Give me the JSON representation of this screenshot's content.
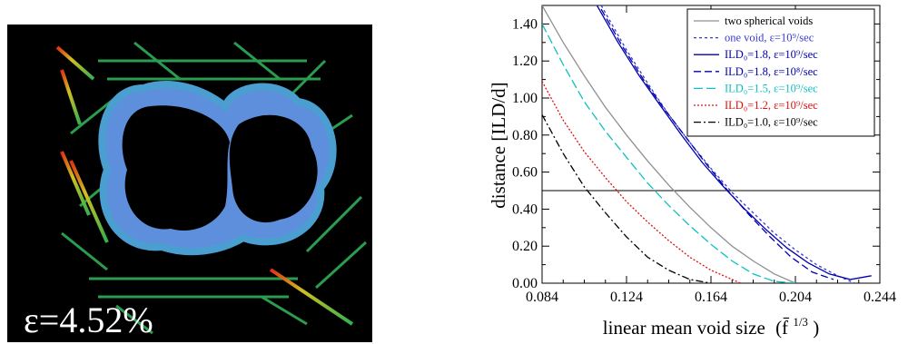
{
  "simulation": {
    "label": "ε=4.52%",
    "colors": {
      "background": "#000000",
      "void_ring": "#5e8fdc",
      "void_interior": "#000000"
    }
  },
  "chart_data": {
    "type": "line",
    "xlabel_main": "linear mean void size",
    "xlabel_paren": "(f̄",
    "xlabel_sup": "1/3",
    "xlabel_close": ")",
    "ylabel": "distance [ILD/d]",
    "xlim": [
      0.084,
      0.244
    ],
    "ylim": [
      0.0,
      1.5
    ],
    "xticks": [
      "0.084",
      "0.124",
      "0.164",
      "0.204",
      "0.244"
    ],
    "yticks": [
      "0.00",
      "0.20",
      "0.40",
      "0.60",
      "0.80",
      "1.00",
      "1.20",
      "1.40"
    ],
    "grid": false,
    "reference_line_y": 0.5,
    "legend_position": "top-right",
    "series": [
      {
        "name": "two spherical voids",
        "color": "#909090",
        "dash": "solid",
        "x": [
          0.084,
          0.094,
          0.104,
          0.114,
          0.124,
          0.134,
          0.144,
          0.154,
          0.164,
          0.174,
          0.184,
          0.194,
          0.204
        ],
        "y": [
          1.5,
          1.3,
          1.12,
          0.95,
          0.8,
          0.66,
          0.53,
          0.41,
          0.3,
          0.2,
          0.12,
          0.05,
          0.0
        ]
      },
      {
        "name": "one void, ε=10⁹/sec",
        "color": "#3a3ad0",
        "dash": "3,3",
        "x": [
          0.112,
          0.124,
          0.134,
          0.144,
          0.154,
          0.164,
          0.174,
          0.184,
          0.194,
          0.204,
          0.214,
          0.224,
          0.232
        ],
        "y": [
          1.5,
          1.26,
          1.08,
          0.91,
          0.76,
          0.62,
          0.49,
          0.38,
          0.27,
          0.18,
          0.1,
          0.04,
          0.0
        ]
      },
      {
        "name": "ILD₀=1.8, ε=10⁹/sec",
        "color": "#0000b0",
        "dash": "solid",
        "x": [
          0.11,
          0.12,
          0.13,
          0.14,
          0.15,
          0.16,
          0.17,
          0.18,
          0.19,
          0.2,
          0.21,
          0.22,
          0.23,
          0.24
        ],
        "y": [
          1.5,
          1.3,
          1.12,
          0.96,
          0.8,
          0.65,
          0.52,
          0.4,
          0.29,
          0.19,
          0.11,
          0.05,
          0.02,
          0.04
        ]
      },
      {
        "name": "ILD₀=1.8, ε=10⁸/sec",
        "color": "#0000b0",
        "dash": "8,4",
        "x": [
          0.112,
          0.122,
          0.132,
          0.142,
          0.152,
          0.162,
          0.172,
          0.182,
          0.192,
          0.202,
          0.212,
          0.222
        ],
        "y": [
          1.48,
          1.28,
          1.1,
          0.94,
          0.79,
          0.64,
          0.5,
          0.37,
          0.25,
          0.14,
          0.06,
          0.02
        ]
      },
      {
        "name": "ILD₀=1.5, ε=10⁹/sec",
        "color": "#10c0c0",
        "dash": "10,4",
        "x": [
          0.084,
          0.094,
          0.104,
          0.114,
          0.124,
          0.134,
          0.144,
          0.154,
          0.164,
          0.174,
          0.184,
          0.194,
          0.204
        ],
        "y": [
          1.4,
          1.18,
          0.98,
          0.82,
          0.68,
          0.54,
          0.42,
          0.31,
          0.21,
          0.12,
          0.05,
          0.01,
          0.0
        ]
      },
      {
        "name": "ILD₀=1.2, ε=10⁹/sec",
        "color": "#e01010",
        "dash": "2,2",
        "x": [
          0.084,
          0.094,
          0.104,
          0.114,
          0.124,
          0.134,
          0.144,
          0.154,
          0.164,
          0.174,
          0.178
        ],
        "y": [
          1.09,
          0.88,
          0.71,
          0.57,
          0.44,
          0.33,
          0.23,
          0.14,
          0.07,
          0.02,
          0.0
        ]
      },
      {
        "name": "ILD₀=1.0, ε=10⁹/sec",
        "color": "#000000",
        "dash": "8,3,2,3",
        "x": [
          0.084,
          0.094,
          0.104,
          0.114,
          0.124,
          0.134,
          0.144,
          0.154,
          0.164
        ],
        "y": [
          0.91,
          0.7,
          0.52,
          0.38,
          0.25,
          0.14,
          0.07,
          0.02,
          0.0
        ]
      }
    ]
  }
}
